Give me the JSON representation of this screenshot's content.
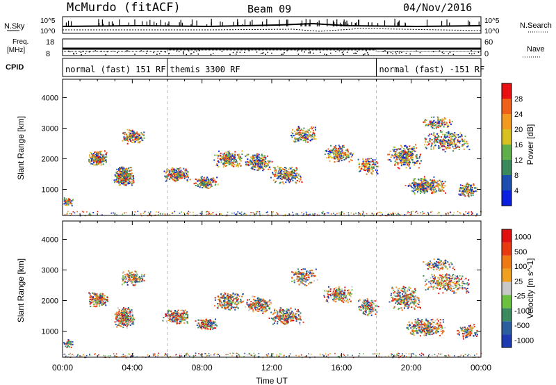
{
  "header": {
    "station": "McMurdo (fitACF)",
    "beam": "Beam 09",
    "date": "04/Nov/2016"
  },
  "nsky_panel": {
    "left_label": "N.Sky",
    "right_label": "N.Search",
    "ytick_top": "10^5",
    "ytick_bottom": "10^0"
  },
  "freq_panel": {
    "left_label_line1": "Freq.",
    "left_label_line2": "[MHz]",
    "right_label": "Nave",
    "left_ticks": [
      "18",
      "8"
    ],
    "right_ticks": [
      "60",
      "0"
    ]
  },
  "cpid_panel": {
    "label": "CPID",
    "modes": [
      {
        "text": "normal (fast) 151 RF",
        "start_hour": 0
      },
      {
        "text": "themis 3300 RF",
        "start_hour": 6
      },
      {
        "text": "normal (fast) -151 RF",
        "start_hour": 18
      }
    ]
  },
  "chart_data": [
    {
      "type": "heatmap",
      "ylabel": "Slant Range [km]",
      "yticks": [
        1000,
        2000,
        3000,
        4000
      ],
      "ylim": [
        150,
        4600
      ],
      "xlim_hours": [
        0,
        24
      ],
      "colorbar": {
        "label": "Power [dB]",
        "ticks": [
          "4",
          "8",
          "12",
          "16",
          "20",
          "24",
          "28"
        ],
        "colors": [
          "#0a1fe0",
          "#1c4fb0",
          "#3a8a5c",
          "#5fb04a",
          "#d8c020",
          "#f29a20",
          "#f06018",
          "#e81010"
        ]
      }
    },
    {
      "type": "heatmap",
      "ylabel": "Slant Range [km]",
      "yticks": [
        1000,
        2000,
        3000,
        4000
      ],
      "ylim": [
        150,
        4600
      ],
      "xlim_hours": [
        0,
        24
      ],
      "colorbar": {
        "label": "Velocity [m s^-1]",
        "ticks": [
          "1000",
          "500",
          "100",
          "25",
          "-25",
          "-100",
          "-500",
          "-1000"
        ],
        "colors": [
          "#1e3ab0",
          "#2a5e9e",
          "#3c8a60",
          "#6ac240",
          "#c8c8c8",
          "#f0a020",
          "#ee7a14",
          "#e83a10",
          "#e01010"
        ]
      }
    }
  ],
  "xaxis": {
    "ticks": [
      "00:00",
      "04:00",
      "08:00",
      "12:00",
      "16:00",
      "20:00",
      "00:00"
    ],
    "label": "Time UT"
  }
}
